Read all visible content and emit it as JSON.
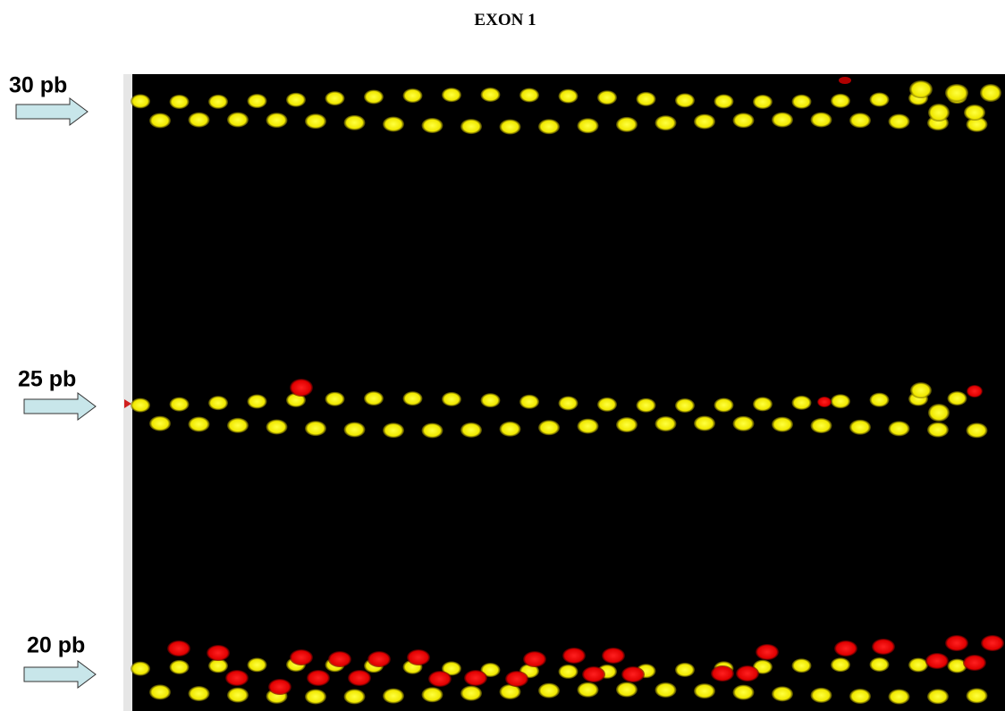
{
  "header": {
    "title": "EXON 1"
  },
  "markers": [
    {
      "label": "30 pb"
    },
    {
      "label": "25 pb"
    },
    {
      "label": "20 pb"
    }
  ]
}
